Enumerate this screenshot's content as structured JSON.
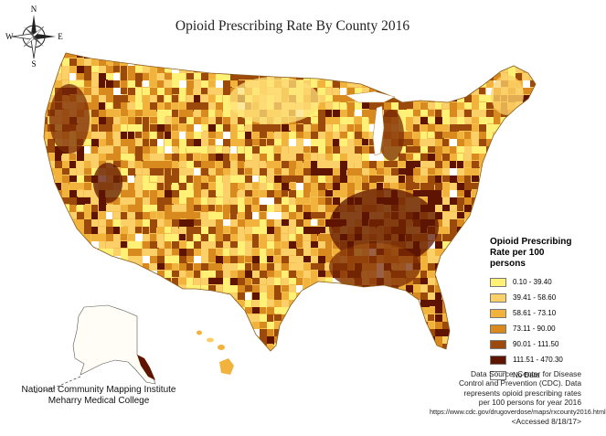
{
  "title": "Opioid Prescribing Rate By County 2016",
  "compass": {
    "north": "N",
    "south": "S",
    "east": "E",
    "west": "W"
  },
  "legend": {
    "title_line1": "Opioid Prescribing",
    "title_line2": "Rate per 100 persons",
    "items": [
      {
        "label": "0.10 - 39.40",
        "color": "#fff176"
      },
      {
        "label": "39.41 - 58.60",
        "color": "#fbd068"
      },
      {
        "label": "58.61 - 73.10",
        "color": "#f2b33c"
      },
      {
        "label": "73.11 - 90.00",
        "color": "#d98a1e"
      },
      {
        "label": "90.01 - 111.50",
        "color": "#9c4a0c"
      },
      {
        "label": "111.51 - 470.30",
        "color": "#5e1400"
      },
      {
        "label": "No Data",
        "color": "#ffffff"
      }
    ]
  },
  "source": {
    "line1": "Data Source: Center for Disease",
    "line2": "Control and Prevention (CDC). Data",
    "line3": "represents opioid prescribing rates",
    "line4": "per 100 persons for year 2016",
    "line5": "https://www.cdc.gov/drugoverdose/maps/rxcounty2016.html",
    "line6": "<Accessed 8/18/17>"
  },
  "credit": {
    "line1": "National Community Mapping Institute",
    "line2": "Meharry Medical College"
  }
}
